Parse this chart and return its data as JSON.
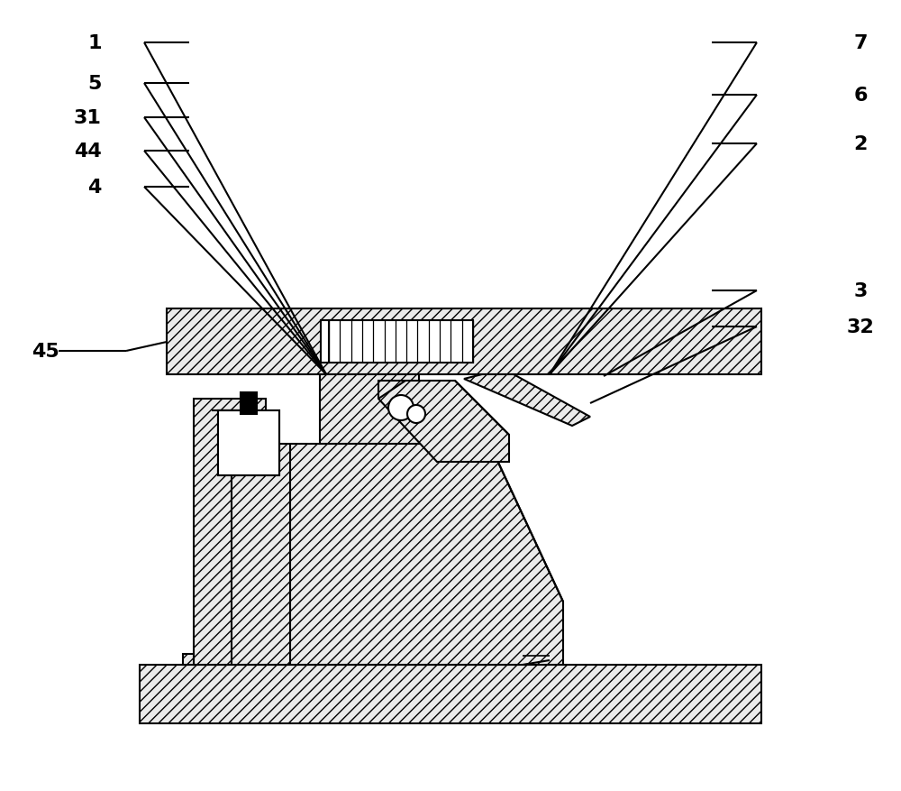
{
  "bg_color": "#ffffff",
  "lw": 1.5,
  "hatch": "///",
  "label_fontsize": 16,
  "label_fontweight": "bold",
  "figsize": [
    10.0,
    8.78
  ],
  "dpi": 100,
  "xlim": [
    0,
    10
  ],
  "ylim": [
    0,
    8.78
  ],
  "labels_left": [
    [
      "1",
      1.05,
      8.3
    ],
    [
      "5",
      1.05,
      7.85
    ],
    [
      "31",
      0.97,
      7.47
    ],
    [
      "44",
      0.97,
      7.1
    ],
    [
      "4",
      1.05,
      6.7
    ]
  ],
  "labels_right": [
    [
      "7",
      9.55,
      8.3
    ],
    [
      "6",
      9.55,
      7.72
    ],
    [
      "2",
      9.55,
      7.18
    ],
    [
      "32",
      9.55,
      5.15
    ],
    [
      "3",
      9.55,
      5.55
    ]
  ],
  "label_45": [
    "45",
    0.5,
    4.88
  ]
}
